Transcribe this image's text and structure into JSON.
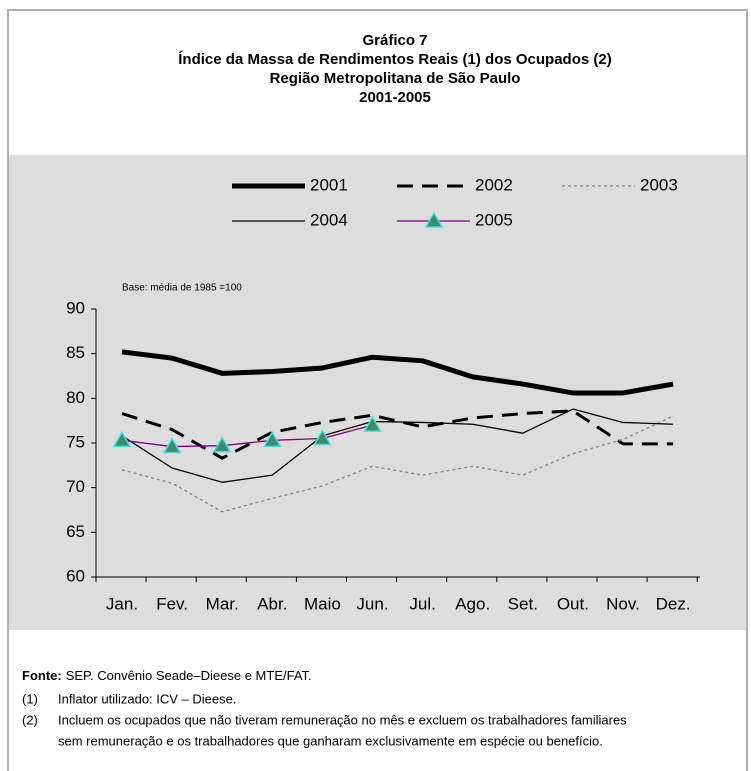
{
  "chart_data": {
    "type": "line",
    "title": [
      "Gráfico 7",
      "Índice da Massa de Rendimentos Reais (1) dos Ocupados (2)",
      "Região Metropolitana de São Paulo",
      "2001-2005"
    ],
    "annotation": "Base: média de 1985 =100",
    "categories": [
      "Jan.",
      "Fev.",
      "Mar.",
      "Abr.",
      "Maio",
      "Jun.",
      "Jul.",
      "Ago.",
      "Set.",
      "Out.",
      "Nov.",
      "Dez."
    ],
    "ylim": [
      60,
      90
    ],
    "yticks": [
      60,
      65,
      70,
      75,
      80,
      85,
      90
    ],
    "legend": "top",
    "series": [
      {
        "name": "2001",
        "color": "#000000",
        "line_style": "bold",
        "values": [
          85.2,
          84.5,
          82.8,
          83.0,
          83.4,
          84.6,
          84.2,
          82.4,
          81.6,
          80.6,
          80.6,
          81.6
        ]
      },
      {
        "name": "2002",
        "color": "#000000",
        "line_style": "dashed",
        "values": [
          78.3,
          76.5,
          73.3,
          76.2,
          77.3,
          78.1,
          76.8,
          77.8,
          78.3,
          78.6,
          74.9,
          74.9
        ]
      },
      {
        "name": "2003",
        "color": "#808080",
        "line_style": "dotted",
        "values": [
          72.0,
          70.5,
          67.3,
          68.8,
          70.2,
          72.4,
          71.4,
          72.4,
          71.4,
          73.8,
          75.4,
          78.0
        ]
      },
      {
        "name": "2004",
        "color": "#000000",
        "line_style": "solid",
        "values": [
          75.8,
          72.2,
          70.6,
          71.4,
          75.8,
          77.4,
          77.3,
          77.1,
          76.1,
          78.8,
          77.3,
          77.1
        ]
      },
      {
        "name": "2005",
        "color": "#800080",
        "line_style": "solid",
        "marker": "triangle",
        "marker_color": "#3a8c6a",
        "marker_edge": "#40e0e0",
        "values": [
          75.3,
          74.6,
          74.7,
          75.3,
          75.5,
          77.0,
          null,
          null,
          null,
          null,
          null,
          null
        ]
      }
    ]
  },
  "footer": {
    "source_label": "Fonte:",
    "source": "SEP. Convênio Seade–Dieese e MTE/FAT.",
    "notes": [
      {
        "marker": "(1)",
        "lines": [
          "Inflator utilizado: ICV – Dieese."
        ]
      },
      {
        "marker": "(2)",
        "lines": [
          "Incluem os ocupados que não tiveram remuneração no mês e excluem os trabalhadores familiares",
          "sem remuneração e os trabalhadores que ganharam exclusivamente em espécie ou benefício."
        ]
      }
    ]
  }
}
